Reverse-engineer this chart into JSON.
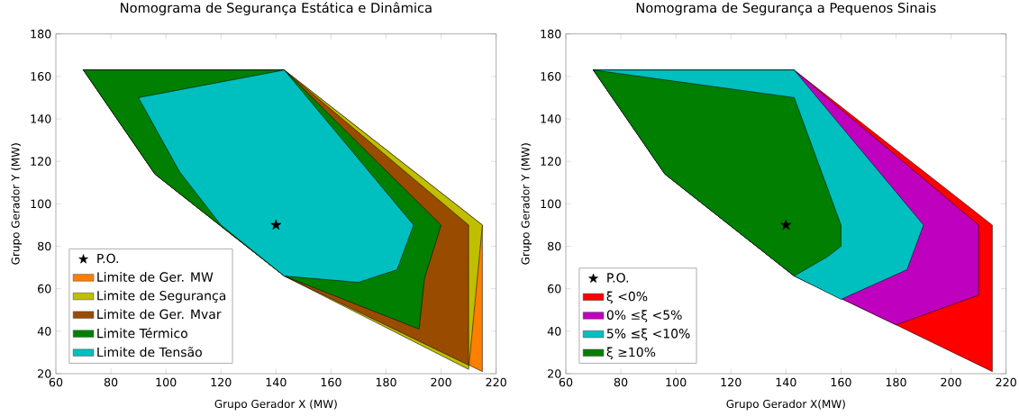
{
  "chart_data": [
    {
      "type": "area",
      "title": "Nomograma de Segurança Estática e Dinâmica",
      "xlabel": "Grupo Gerador X (MW)",
      "ylabel": "Grupo Gerador Y (MW)",
      "xlim": [
        60,
        220
      ],
      "ylim": [
        20,
        180
      ],
      "xticks": [
        60,
        80,
        100,
        120,
        140,
        160,
        180,
        200,
        220
      ],
      "yticks": [
        20,
        40,
        60,
        80,
        100,
        120,
        140,
        160,
        180
      ],
      "legend": "bottom left",
      "series": [
        {
          "name": "P.O.",
          "type": "scatter",
          "marker": "star",
          "color": "#000000",
          "x": [
            140
          ],
          "values": [
            90
          ]
        },
        {
          "name": "Limite de Ger. MW",
          "color": "#ff7f00",
          "x": [
            70,
            143,
            215,
            215,
            143,
            96,
            70
          ],
          "values": [
            163,
            163,
            90,
            21,
            66,
            114,
            163
          ]
        },
        {
          "name": "Limite de Segurança",
          "color": "#bfbf00",
          "x": [
            70,
            143,
            215,
            210,
            143,
            96,
            70
          ],
          "values": [
            163,
            163,
            90,
            22,
            66,
            114,
            163
          ]
        },
        {
          "name": "Limite de Ger. Mvar",
          "color": "#994c00",
          "x": [
            70,
            143,
            210,
            210,
            143,
            96,
            70
          ],
          "values": [
            163,
            163,
            90,
            24,
            66,
            114,
            163
          ]
        },
        {
          "name": "Limite Térmico",
          "color": "#007f00",
          "x": [
            70,
            143,
            200,
            194,
            192,
            143,
            96,
            70
          ],
          "values": [
            163,
            163,
            90,
            65,
            41,
            66,
            114,
            163
          ]
        },
        {
          "name": "Limite de Tensão",
          "color": "#00bfbf",
          "x": [
            90,
            143,
            190,
            184,
            170,
            143,
            120,
            105,
            90
          ],
          "values": [
            150,
            163,
            90,
            69,
            63,
            66,
            90,
            115,
            150
          ]
        }
      ]
    },
    {
      "type": "area",
      "title": "Nomograma de Segurança a Pequenos Sinais",
      "xlabel": "Grupo Gerador X(MW)",
      "ylabel": "Grupo Gerador Y (MW)",
      "xlim": [
        60,
        220
      ],
      "ylim": [
        20,
        180
      ],
      "xticks": [
        60,
        80,
        100,
        120,
        140,
        160,
        180,
        200,
        220
      ],
      "yticks": [
        20,
        40,
        60,
        80,
        100,
        120,
        140,
        160,
        180
      ],
      "legend": "bottom left",
      "series": [
        {
          "name": "P.O.",
          "type": "scatter",
          "marker": "star",
          "color": "#000000",
          "x": [
            140
          ],
          "values": [
            90
          ]
        },
        {
          "name": "ξ <0%",
          "color": "#ff0000",
          "x": [
            70,
            143,
            215,
            215,
            180,
            143,
            96,
            70
          ],
          "values": [
            163,
            163,
            90,
            21,
            43,
            66,
            114,
            163
          ]
        },
        {
          "name": "0% ≤ξ <5%",
          "color": "#bf00bf",
          "x": [
            70,
            143,
            210,
            210,
            180,
            143,
            96,
            70
          ],
          "values": [
            163,
            163,
            90,
            57,
            43,
            66,
            114,
            163
          ]
        },
        {
          "name": "5% ≤ξ <10%",
          "color": "#00bfbf",
          "x": [
            70,
            143,
            190,
            184,
            160,
            143,
            96,
            70
          ],
          "values": [
            163,
            163,
            90,
            69,
            55,
            66,
            114,
            163
          ]
        },
        {
          "name": "ξ ≥10%",
          "color": "#007f00",
          "x": [
            70,
            143,
            160,
            160,
            155,
            143,
            96,
            70
          ],
          "values": [
            163,
            150,
            90,
            80,
            75,
            66,
            114,
            163
          ]
        }
      ]
    }
  ]
}
